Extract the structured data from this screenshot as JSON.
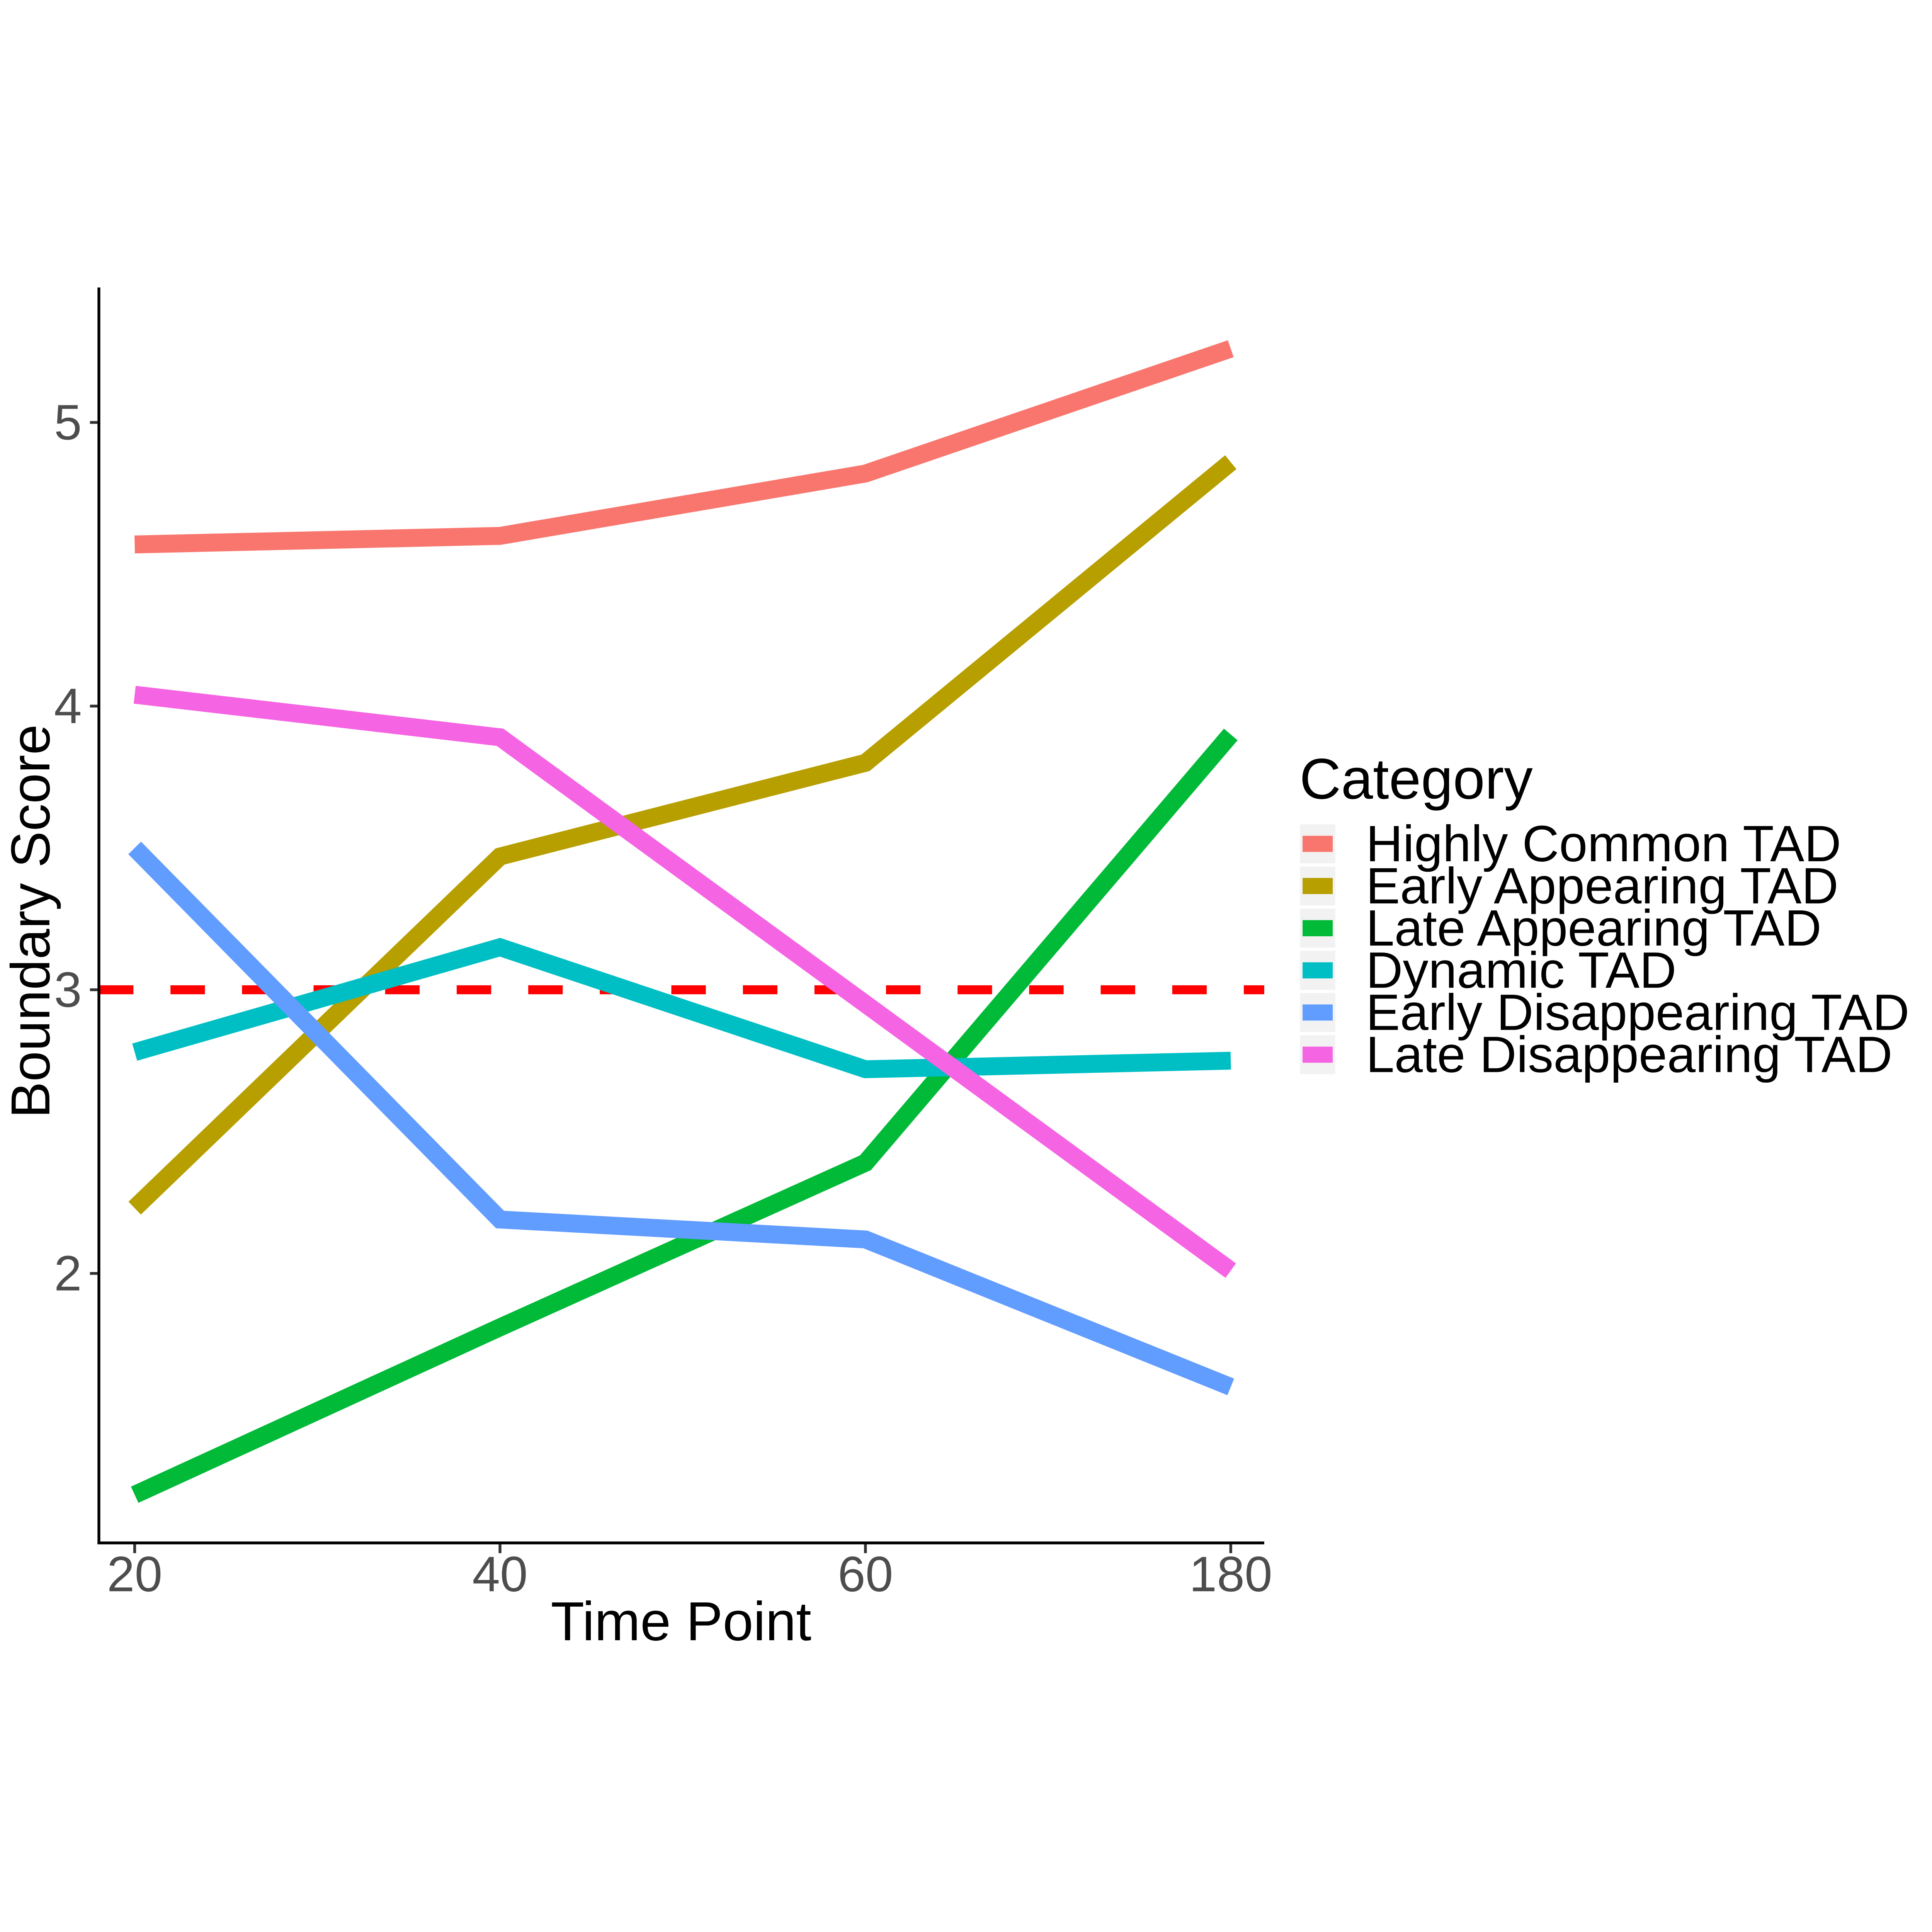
{
  "chart_data": {
    "type": "line",
    "title": "",
    "xlabel": "Time Point",
    "ylabel": "Boundary Score",
    "x_tick_labels": [
      "20",
      "40",
      "60",
      "180"
    ],
    "y_ticks": [
      2,
      3,
      4,
      5
    ],
    "y_tick_labels": [
      "2",
      "3",
      "4",
      "5"
    ],
    "ylim": [
      0.87,
      5.48
    ],
    "grid": false,
    "legend_position": "right",
    "legend_title": "Category",
    "categories": [
      20,
      40,
      60,
      180
    ],
    "series": [
      {
        "name": "Highly Common TAD",
        "color": "#F8766D",
        "values": [
          4.57,
          4.6,
          4.82,
          5.26
        ]
      },
      {
        "name": "Early Appearing TAD",
        "color": "#B79F00",
        "values": [
          2.23,
          3.47,
          3.8,
          4.86
        ]
      },
      {
        "name": "Late Appearing TAD",
        "color": "#00BA38",
        "values": [
          1.22,
          1.81,
          2.39,
          3.9
        ]
      },
      {
        "name": "Dynamic TAD",
        "color": "#00BFC4",
        "values": [
          2.78,
          3.15,
          2.72,
          2.75
        ]
      },
      {
        "name": "Early Disappearing TAD",
        "color": "#619CFF",
        "values": [
          3.5,
          2.19,
          2.12,
          1.6
        ]
      },
      {
        "name": "Late Disappearing TAD",
        "color": "#F564E3",
        "values": [
          4.04,
          3.89,
          2.95,
          2.01
        ]
      }
    ],
    "reference_line": {
      "y": 3,
      "color": "#FF0000",
      "style": "dashed"
    }
  }
}
